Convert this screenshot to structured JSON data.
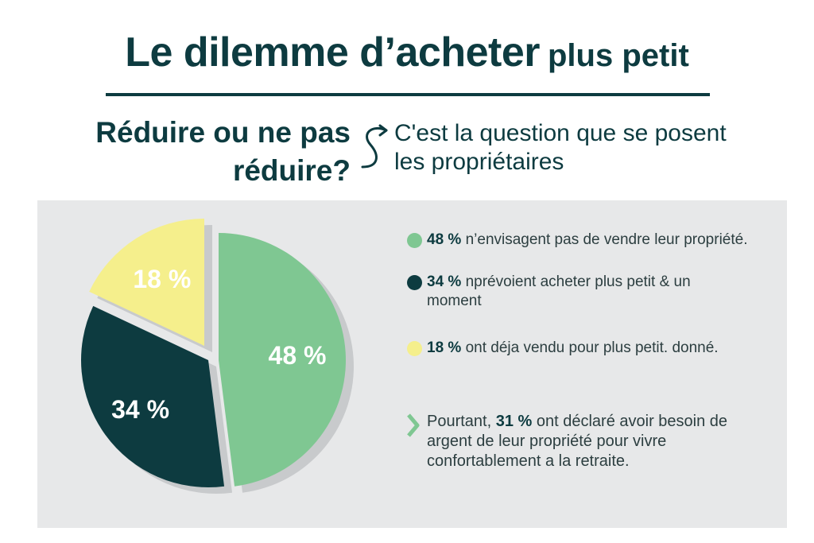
{
  "title": {
    "main": "Le dilemme d’acheter",
    "accent": "plus petit"
  },
  "question": {
    "line1": "Réduire ou ne pas",
    "line2": "réduire?"
  },
  "subquestion": {
    "line1": "C'est la question que se posent",
    "line2": "les propriétaires"
  },
  "colors": {
    "green": "#7fc792",
    "dark": "#0d3b40",
    "yellow": "#f5ef8c",
    "panel": "#e7e8e9",
    "chevron": "#7fc792"
  },
  "chart_data": {
    "type": "pie",
    "slices": [
      {
        "label": "48 %",
        "value": 48,
        "color": "#7fc792"
      },
      {
        "label": "34 %",
        "value": 34,
        "color": "#0d3b40"
      },
      {
        "label": "18 %",
        "value": 18,
        "color": "#f5ef8c"
      }
    ]
  },
  "legend": [
    {
      "pct": "48 %",
      "text": " n’envisagent pas de vendre leur propriété.",
      "color": "#7fc792"
    },
    {
      "pct": "34 %",
      "text": " nprévoient acheter plus petit & un moment",
      "color": "#0d3b40"
    },
    {
      "pct": "18 %",
      "text": "  ont déja vendu pour plus petit. donné.",
      "color": "#f5ef8c"
    }
  ],
  "note": {
    "pre": "Pourtant, ",
    "pct": "31 %",
    "post": " ont déclaré avoir besoin de argent de leur propriété pour vivre confortablement a la retraite.",
    "icon": "chevron-right-icon"
  }
}
